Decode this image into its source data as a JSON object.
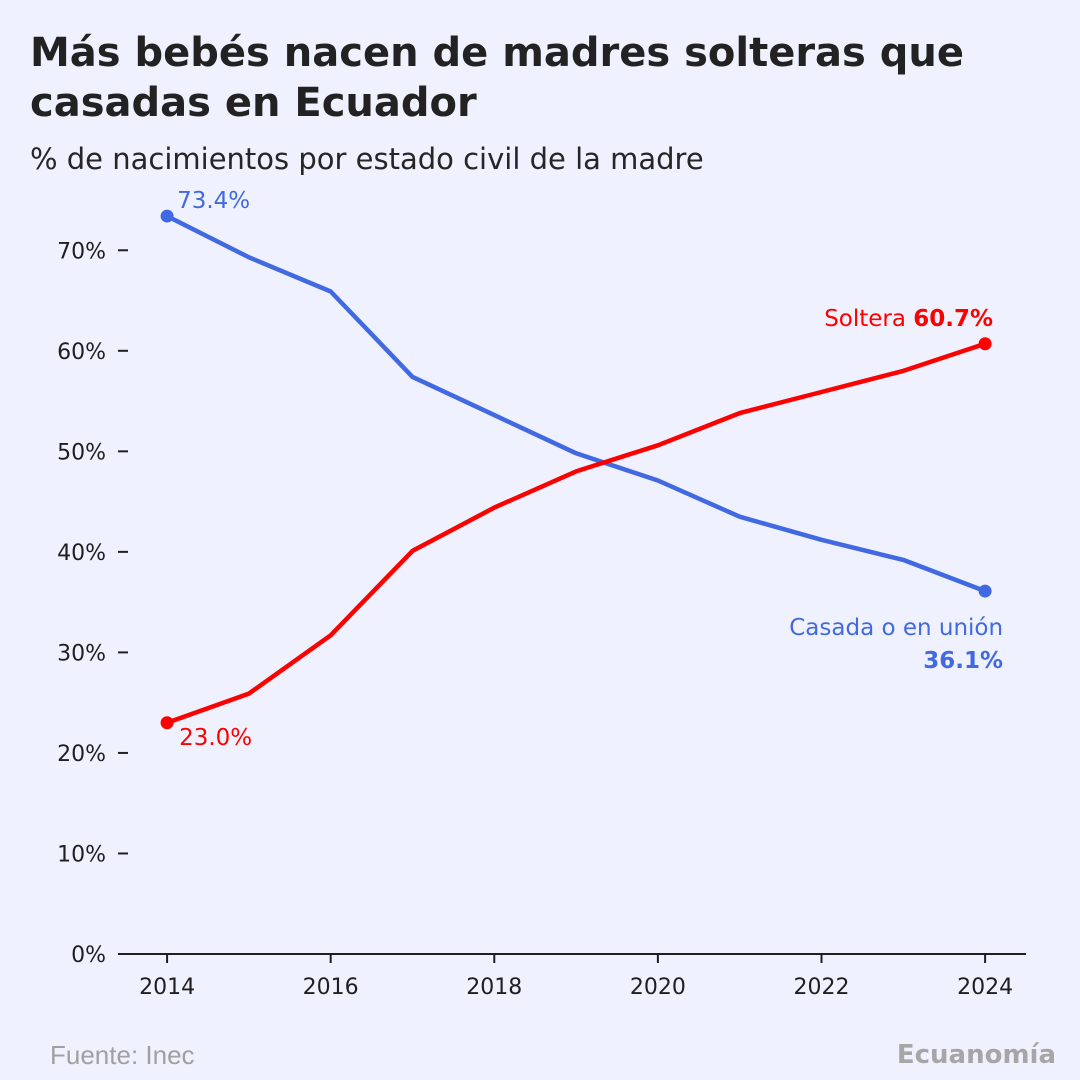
{
  "chart_data": {
    "type": "line",
    "title": "Más bebés nacen de madres solteras que casadas en Ecuador",
    "subtitle": "% de nacimientos por estado civil de la madre",
    "x": [
      2014,
      2015,
      2016,
      2017,
      2018,
      2019,
      2020,
      2021,
      2022,
      2023,
      2024
    ],
    "xticks": [
      2014,
      2016,
      2018,
      2020,
      2022,
      2024
    ],
    "xtick_labels": [
      "2014",
      "2016",
      "2018",
      "2020",
      "2022",
      "2024"
    ],
    "xlim": [
      2013.4,
      2024.5
    ],
    "yticks": [
      0,
      10,
      20,
      30,
      40,
      50,
      60,
      70
    ],
    "ytick_labels": [
      "0%",
      "10%",
      "20%",
      "30%",
      "40%",
      "50%",
      "60%",
      "70%"
    ],
    "ylim": [
      0,
      75
    ],
    "grid": false,
    "series": [
      {
        "name": "Casada o en unión",
        "color": "#4169e1",
        "values": [
          73.4,
          69.3,
          65.9,
          57.4,
          53.6,
          49.8,
          47.1,
          43.5,
          41.2,
          39.2,
          36.1
        ],
        "start_label": "73.4%",
        "end_label_name": "Casada o en unión",
        "end_label_value": "36.1%"
      },
      {
        "name": "Soltera",
        "color": "#ff0000",
        "values": [
          23.0,
          25.9,
          31.7,
          40.1,
          44.4,
          48.0,
          50.6,
          53.8,
          55.9,
          58.0,
          60.7
        ],
        "start_label": "23.0%",
        "end_label_name": "Soltera",
        "end_label_value": "60.7%"
      }
    ]
  },
  "footer": {
    "source": "Fuente: Inec",
    "brand": "Ecuanomía"
  }
}
